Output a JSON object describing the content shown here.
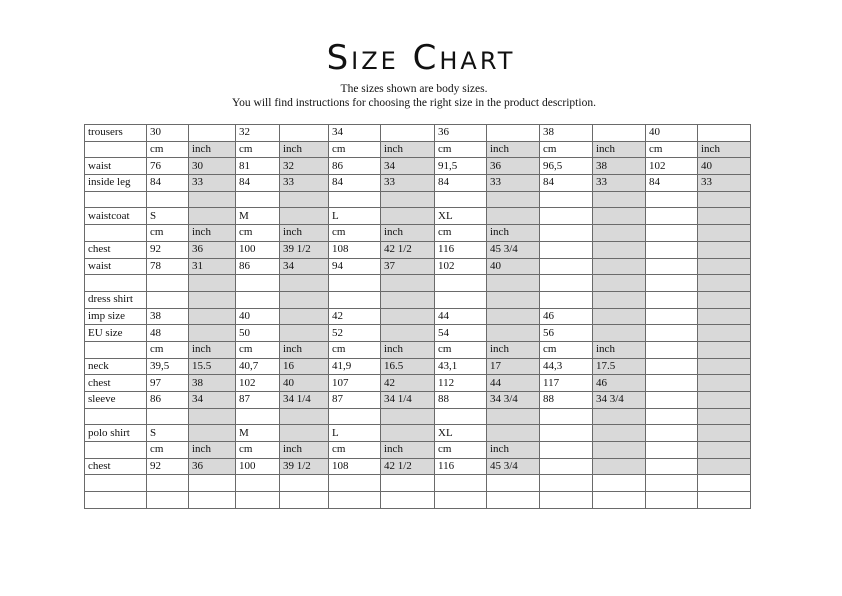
{
  "title": "Size Chart",
  "subtitle_lines": [
    "The sizes shown are body sizes.",
    "You will find instructions for choosing the right size in the product description."
  ],
  "shaded_color": "#d9d9d9",
  "rows": [
    [
      "trousers",
      "30",
      "",
      "32",
      "",
      "34",
      "",
      "36",
      "",
      "38",
      "",
      "40",
      ""
    ],
    [
      "",
      "cm",
      "inch",
      "cm",
      "inch",
      "cm",
      "inch",
      "cm",
      "inch",
      "cm",
      "inch",
      "cm",
      "inch"
    ],
    [
      "waist",
      "76",
      "30",
      "81",
      "32",
      "86",
      "34",
      "91,5",
      "36",
      "96,5",
      "38",
      "102",
      "40"
    ],
    [
      "inside leg",
      "84",
      "33",
      "84",
      "33",
      "84",
      "33",
      "84",
      "33",
      "84",
      "33",
      "84",
      "33"
    ],
    [
      "",
      "",
      "",
      "",
      "",
      "",
      "",
      "",
      "",
      "",
      "",
      "",
      ""
    ],
    [
      "waistcoat",
      "S",
      "",
      "M",
      "",
      "L",
      "",
      "XL",
      "",
      "",
      "",
      "",
      ""
    ],
    [
      "",
      "cm",
      "inch",
      "cm",
      "inch",
      "cm",
      "inch",
      "cm",
      "inch",
      "",
      "",
      "",
      ""
    ],
    [
      "chest",
      "92",
      "36",
      "100",
      "39 1/2",
      "108",
      "42 1/2",
      "116",
      "45 3/4",
      "",
      "",
      "",
      ""
    ],
    [
      "waist",
      "78",
      "31",
      "86",
      "34",
      "94",
      "37",
      "102",
      "40",
      "",
      "",
      "",
      ""
    ],
    [
      "",
      "",
      "",
      "",
      "",
      "",
      "",
      "",
      "",
      "",
      "",
      "",
      ""
    ],
    [
      "dress shirt",
      "",
      "",
      "",
      "",
      "",
      "",
      "",
      "",
      "",
      "",
      "",
      ""
    ],
    [
      "imp size",
      "38",
      "",
      "40",
      "",
      "42",
      "",
      "44",
      "",
      "46",
      "",
      "",
      ""
    ],
    [
      "EU size",
      "48",
      "",
      "50",
      "",
      "52",
      "",
      "54",
      "",
      "56",
      "",
      "",
      ""
    ],
    [
      "",
      "cm",
      "inch",
      "cm",
      "inch",
      "cm",
      "inch",
      "cm",
      "inch",
      "cm",
      "inch",
      "",
      ""
    ],
    [
      "neck",
      "39,5",
      "15.5",
      "40,7",
      "16",
      "41,9",
      "16.5",
      "43,1",
      "17",
      "44,3",
      "17.5",
      "",
      ""
    ],
    [
      "chest",
      "97",
      "38",
      "102",
      "40",
      "107",
      "42",
      "112",
      "44",
      "117",
      "46",
      "",
      ""
    ],
    [
      "sleeve",
      "86",
      "34",
      "87",
      "34 1/4",
      "87",
      "34 1/4",
      "88",
      "34 3/4",
      "88",
      "34 3/4",
      "",
      ""
    ],
    [
      "",
      "",
      "",
      "",
      "",
      "",
      "",
      "",
      "",
      "",
      "",
      "",
      ""
    ],
    [
      "polo shirt",
      "S",
      "",
      "M",
      "",
      "L",
      "",
      "XL",
      "",
      "",
      "",
      "",
      ""
    ],
    [
      "",
      "cm",
      "inch",
      "cm",
      "inch",
      "cm",
      "inch",
      "cm",
      "inch",
      "",
      "",
      "",
      ""
    ],
    [
      "chest",
      "92",
      "36",
      "100",
      "39 1/2",
      "108",
      "42 1/2",
      "116",
      "45 3/4",
      "",
      "",
      "",
      ""
    ],
    [
      "",
      "",
      "",
      "",
      "",
      "",
      "",
      "",
      "",
      "",
      "",
      "",
      ""
    ],
    [
      "",
      "",
      "",
      "",
      "",
      "",
      "",
      "",
      "",
      "",
      "",
      "",
      ""
    ]
  ]
}
